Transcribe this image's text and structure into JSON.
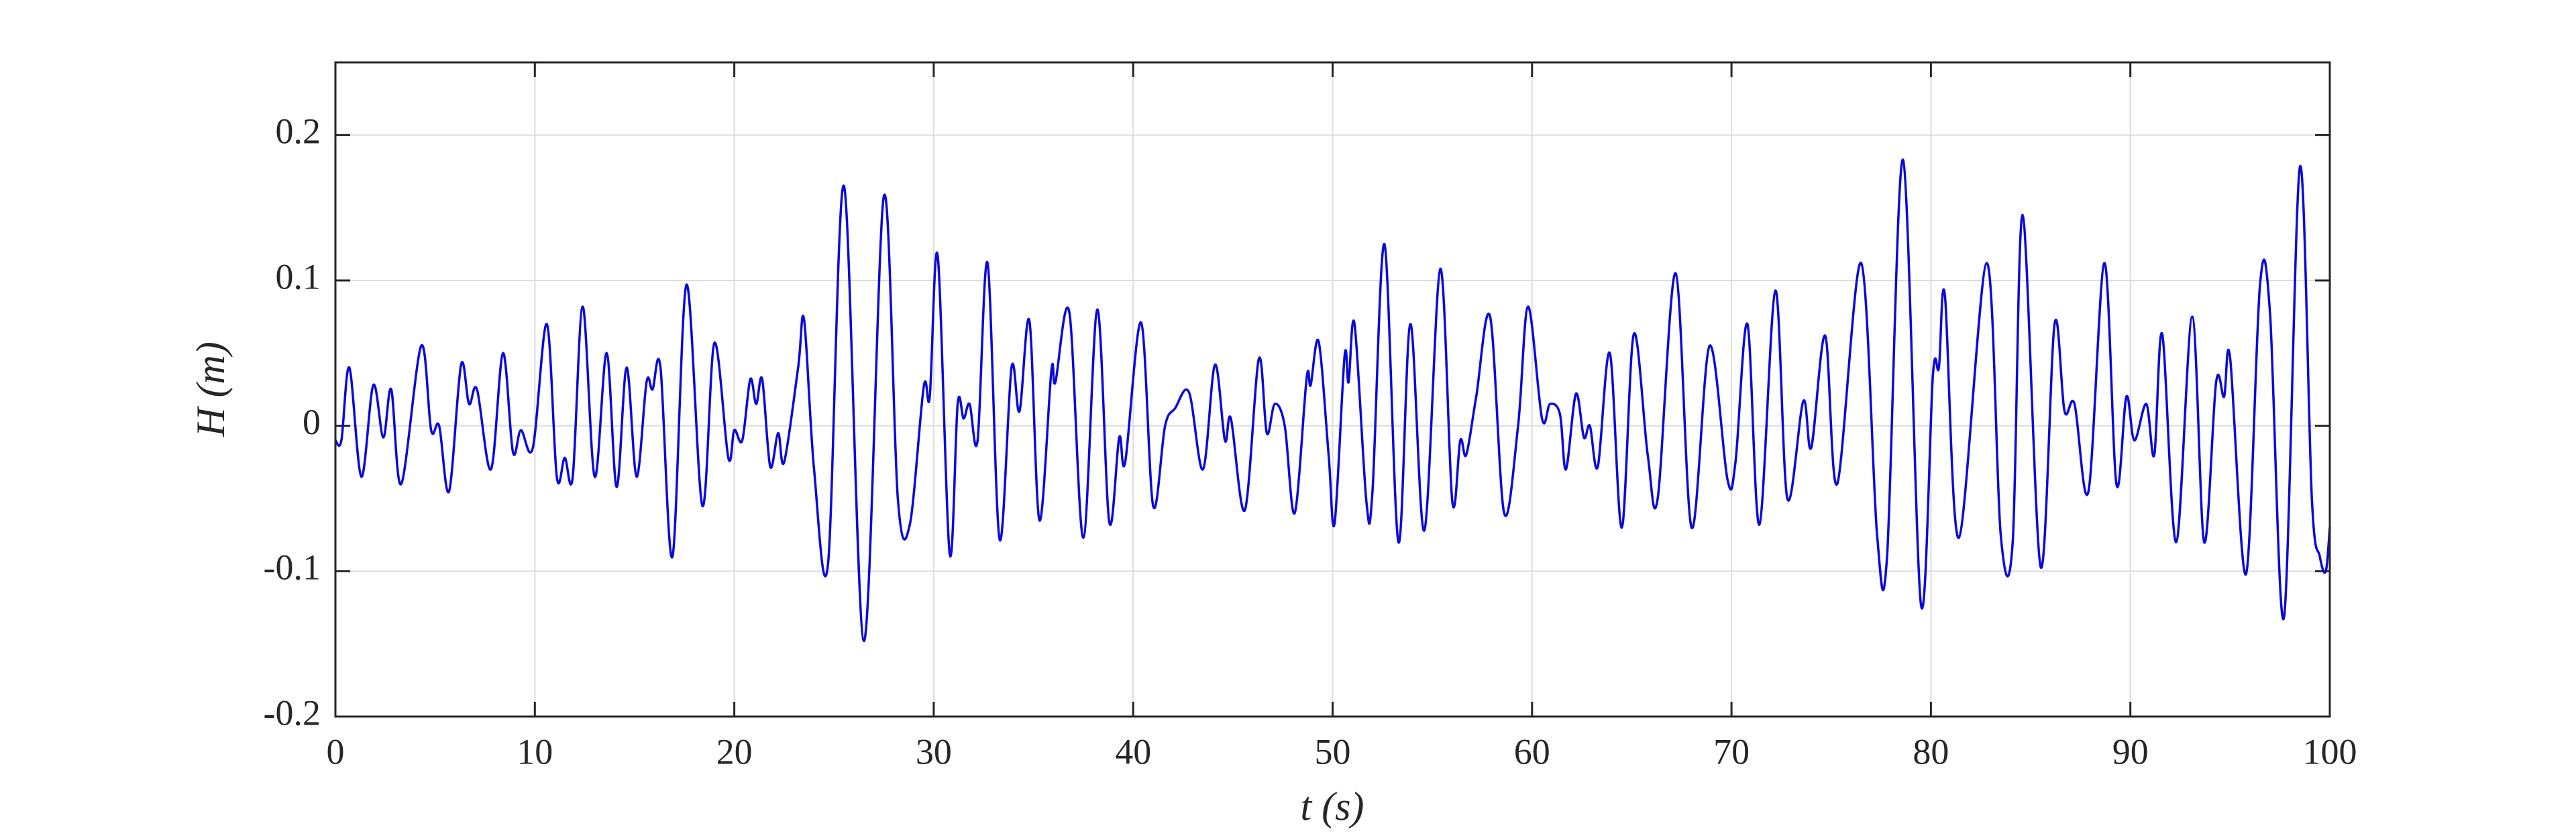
{
  "chart_data": {
    "type": "line",
    "xlabel": "t (s)",
    "ylabel": "H (m)",
    "xlim": [
      0,
      100
    ],
    "xticks": [
      0,
      10,
      20,
      30,
      40,
      50,
      60,
      70,
      80,
      90,
      100
    ],
    "ylim": [
      -0.2,
      0.25
    ],
    "yticks": [
      -0.2,
      -0.1,
      0,
      0.1,
      0.2
    ],
    "grid": true,
    "series": [
      {
        "color": "#0a0adc",
        "x": [
          0,
          0.3,
          0.7,
          1.3,
          1.9,
          2.4,
          2.8,
          3.3,
          4.3,
          4.8,
          5.2,
          5.7,
          6.3,
          6.7,
          7.1,
          7.8,
          8.4,
          8.9,
          9.3,
          9.9,
          10.6,
          11.1,
          11.5,
          11.9,
          12.4,
          13.0,
          13.6,
          14.1,
          14.6,
          15.1,
          15.6,
          15.9,
          16.3,
          16.9,
          17.6,
          18.4,
          19.0,
          19.7,
          20.0,
          20.4,
          20.8,
          21.1,
          21.4,
          21.8,
          22.2,
          22.5,
          23.2,
          23.5,
          24.0,
          24.7,
          25.5,
          26.5,
          27.5,
          28.2,
          28.8,
          29.5,
          29.8,
          30.2,
          30.8,
          31.2,
          31.5,
          31.8,
          32.2,
          32.7,
          33.3,
          33.9,
          34.3,
          34.8,
          35.3,
          35.9,
          36.1,
          36.8,
          37.5,
          38.2,
          38.8,
          39.3,
          39.6,
          40.4,
          41.0,
          41.6,
          42.1,
          42.8,
          43.5,
          44.1,
          44.6,
          44.9,
          45.6,
          46.3,
          46.7,
          47.1,
          47.6,
          48.1,
          48.7,
          48.9,
          49.3,
          49.8,
          50.1,
          50.6,
          50.8,
          51.1,
          51.7,
          52.0,
          52.6,
          53.3,
          53.9,
          54.6,
          55.4,
          56.0,
          56.4,
          56.7,
          57.2,
          57.9,
          58.6,
          59.3,
          59.8,
          60.5,
          60.9,
          61.4,
          61.7,
          62.2,
          62.6,
          62.9,
          63.3,
          63.9,
          64.5,
          65.1,
          65.8,
          66.3,
          67.2,
          68.0,
          68.9,
          69.8,
          70.2,
          70.8,
          71.4,
          72.2,
          72.8,
          73.6,
          74.0,
          74.7,
          75.3,
          76.5,
          77.3,
          77.8,
          78.6,
          79.5,
          80.1,
          80.4,
          80.7,
          81.4,
          82.8,
          83.5,
          84.1,
          84.6,
          85.5,
          86.2,
          86.7,
          87.2,
          87.9,
          88.7,
          89.3,
          89.8,
          90.2,
          90.8,
          91.2,
          91.6,
          92.3,
          93.1,
          93.7,
          94.3,
          94.7,
          95.0,
          95.8,
          96.5,
          97.0,
          97.7,
          98.5,
          99.1,
          99.5,
          99.8,
          100
        ],
        "values": [
          -0.01,
          -0.01,
          0.04,
          -0.035,
          0.028,
          -0.008,
          0.025,
          -0.04,
          0.055,
          -0.003,
          0,
          -0.045,
          0.042,
          0.015,
          0.025,
          -0.03,
          0.05,
          -0.018,
          -0.003,
          -0.015,
          0.07,
          -0.035,
          -0.022,
          -0.035,
          0.082,
          -0.035,
          0.05,
          -0.042,
          0.04,
          -0.035,
          0.03,
          0.025,
          0.04,
          -0.09,
          0.097,
          -0.055,
          0.057,
          -0.022,
          -0.003,
          -0.01,
          0.032,
          0.015,
          0.032,
          -0.028,
          -0.005,
          -0.025,
          0.04,
          0.073,
          -0.03,
          -0.095,
          0.165,
          -0.148,
          0.158,
          -0.05,
          -0.068,
          0.027,
          0.02,
          0.117,
          -0.088,
          0.015,
          0.005,
          0.015,
          -0.01,
          0.112,
          -0.078,
          0.04,
          0.01,
          0.072,
          -0.065,
          0.038,
          0.03,
          0.078,
          -0.077,
          0.08,
          -0.066,
          -0.008,
          -0.025,
          0.071,
          -0.055,
          0,
          0.012,
          0.023,
          -0.03,
          0.042,
          -0.01,
          0.005,
          -0.058,
          0.046,
          -0.005,
          0.015,
          0,
          -0.06,
          0.033,
          0.028,
          0.058,
          -0.02,
          -0.067,
          0.048,
          0.03,
          0.07,
          -0.053,
          -0.045,
          0.125,
          -0.08,
          0.07,
          -0.072,
          0.108,
          -0.052,
          -0.01,
          -0.02,
          0.02,
          0.075,
          -0.06,
          0,
          0.082,
          0.005,
          0.015,
          0.008,
          -0.03,
          0.022,
          -0.008,
          0,
          -0.028,
          0.05,
          -0.07,
          0.063,
          -0.02,
          -0.05,
          0.105,
          -0.07,
          0.055,
          -0.037,
          -0.025,
          0.07,
          -0.068,
          0.093,
          -0.05,
          0.017,
          -0.015,
          0.062,
          -0.04,
          0.112,
          -0.075,
          -0.09,
          0.183,
          -0.123,
          0.035,
          0.04,
          0.09,
          -0.077,
          0.112,
          -0.075,
          -0.08,
          0.145,
          -0.097,
          0.07,
          0.01,
          0.015,
          -0.045,
          0.112,
          -0.04,
          0.02,
          -0.01,
          0.015,
          -0.02,
          0.063,
          -0.08,
          0.075,
          -0.08,
          0.03,
          0.02,
          0.047,
          -0.102,
          0.097,
          0.078,
          -0.132,
          0.178,
          -0.05,
          -0.09,
          -0.1,
          -0.07
        ]
      }
    ]
  }
}
